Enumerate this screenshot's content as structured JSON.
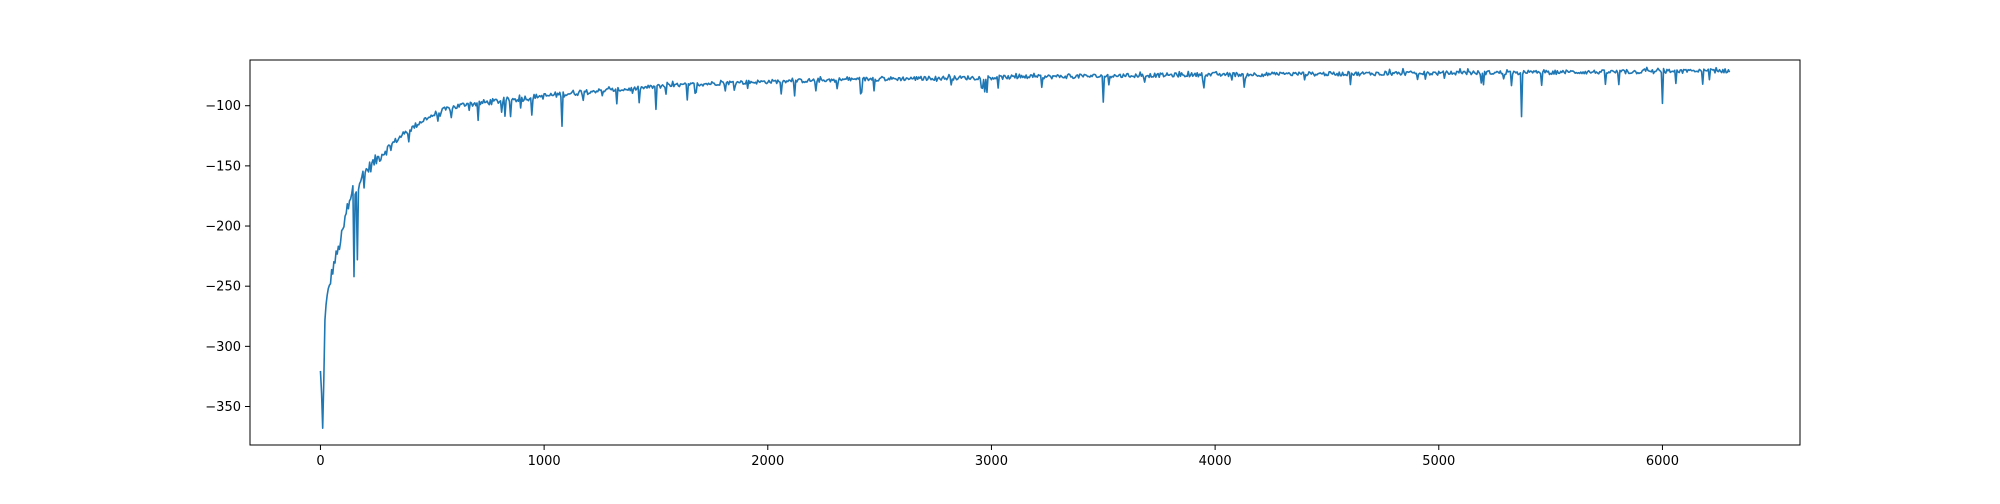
{
  "chart_data": {
    "type": "line",
    "title": "",
    "xlabel": "",
    "ylabel": "",
    "xlim": [
      -315,
      6615
    ],
    "ylim": [
      -382,
      -62
    ],
    "xticks": [
      0,
      1000,
      2000,
      3000,
      4000,
      5000,
      6000
    ],
    "xtick_labels": [
      "0",
      "1000",
      "2000",
      "3000",
      "4000",
      "5000",
      "6000"
    ],
    "yticks": [
      -350,
      -300,
      -250,
      -200,
      -150,
      -100
    ],
    "ytick_labels": [
      "−350",
      "−300",
      "−250",
      "−200",
      "−150",
      "−100"
    ],
    "grid": false,
    "legend": "none",
    "series": [
      {
        "color": "#1f77b4",
        "x_range": [
          0,
          6300
        ],
        "x": [
          0,
          5,
          10,
          15,
          20,
          30,
          40,
          50,
          60,
          70,
          80,
          90,
          100,
          110,
          120,
          130,
          140,
          150,
          160,
          170,
          180,
          190,
          200,
          225,
          250,
          275,
          300,
          350,
          400,
          450,
          500,
          550,
          600,
          650,
          700,
          750,
          800,
          850,
          900,
          950,
          1000,
          1050,
          1100,
          1150,
          1200,
          1300,
          1400,
          1500,
          1600,
          1700,
          1800,
          1900,
          2000,
          2200,
          2400,
          2600,
          2800,
          3000,
          3200,
          3400,
          3600,
          3800,
          4000,
          4200,
          4400,
          4600,
          4800,
          5000,
          5200,
          5400,
          5600,
          5800,
          6000,
          6100,
          6200,
          6300
        ],
        "trend": [
          -322,
          -340,
          -365,
          -330,
          -275,
          -260,
          -250,
          -240,
          -232,
          -225,
          -220,
          -212,
          -205,
          -195,
          -185,
          -178,
          -172,
          -170,
          -168,
          -165,
          -160,
          -158,
          -155,
          -150,
          -145,
          -140,
          -135,
          -127,
          -120,
          -113,
          -108,
          -104,
          -101,
          -99,
          -98,
          -97,
          -96,
          -95,
          -94,
          -93,
          -92,
          -91,
          -90,
          -89,
          -88,
          -87,
          -86,
          -84,
          -83,
          -82,
          -81,
          -80.5,
          -80,
          -79,
          -78,
          -77.5,
          -77,
          -76.5,
          -76,
          -75.5,
          -75,
          -74.5,
          -74,
          -74,
          -73.5,
          -73.5,
          -73,
          -73,
          -72.5,
          -72.5,
          -72,
          -72,
          -71.5,
          -71.5,
          -71,
          -71
        ],
        "notable_dips": [
          {
            "x": 10,
            "y": -368
          },
          {
            "x": 150,
            "y": -242
          },
          {
            "x": 165,
            "y": -228
          },
          {
            "x": 1080,
            "y": -117
          },
          {
            "x": 1500,
            "y": -103
          },
          {
            "x": 3500,
            "y": -97
          },
          {
            "x": 5370,
            "y": -109
          },
          {
            "x": 6000,
            "y": -98
          }
        ]
      }
    ]
  }
}
